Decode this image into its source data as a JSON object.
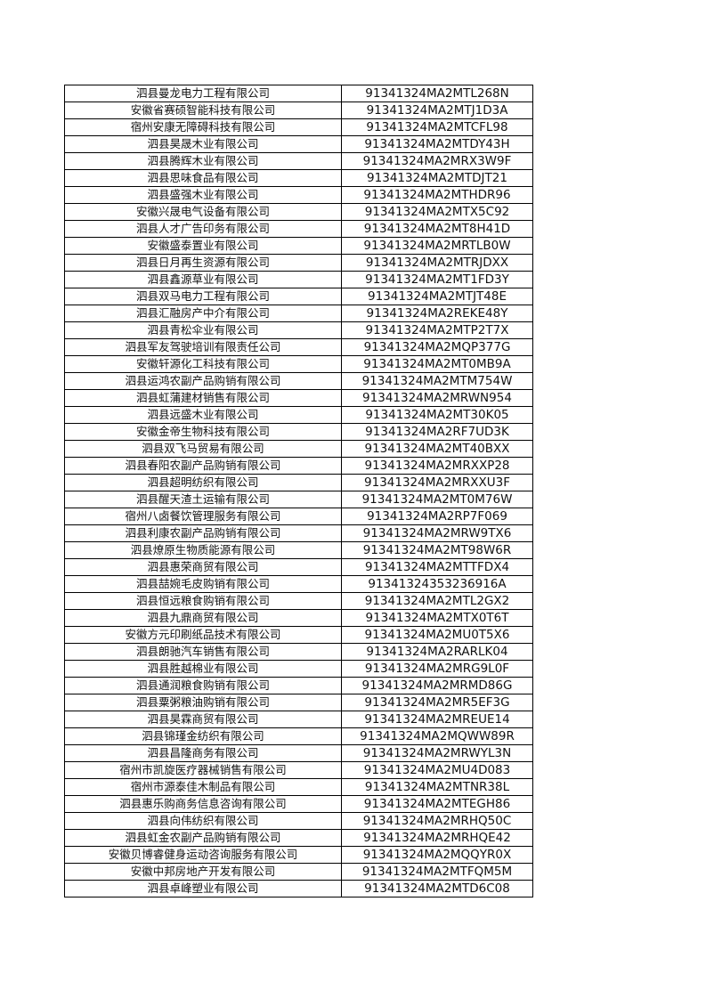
{
  "rows": [
    {
      "name": "泗县曼龙电力工程有限公司",
      "code": "91341324MA2MTL268N"
    },
    {
      "name": "安徽省赛硕智能科技有限公司",
      "code": "91341324MA2MTJ1D3A"
    },
    {
      "name": "宿州安康无障碍科技有限公司",
      "code": "91341324MA2MTCFL98"
    },
    {
      "name": "泗县昊晟木业有限公司",
      "code": "91341324MA2MTDY43H"
    },
    {
      "name": "泗县腾辉木业有限公司",
      "code": "91341324MA2MRX3W9F"
    },
    {
      "name": "泗县思味食品有限公司",
      "code": "91341324MA2MTDJT21"
    },
    {
      "name": "泗县盛强木业有限公司",
      "code": "91341324MA2MTHDR96"
    },
    {
      "name": "安徽兴晟电气设备有限公司",
      "code": "91341324MA2MTX5C92"
    },
    {
      "name": "泗县人才广告印务有限公司",
      "code": "91341324MA2MT8H41D"
    },
    {
      "name": "安徽盛泰置业有限公司",
      "code": "91341324MA2MRTLB0W"
    },
    {
      "name": "泗县日月再生资源有限公司",
      "code": "91341324MA2MTRJDXX"
    },
    {
      "name": "泗县鑫源草业有限公司",
      "code": "91341324MA2MT1FD3Y"
    },
    {
      "name": "泗县双马电力工程有限公司",
      "code": "91341324MA2MTJT48E"
    },
    {
      "name": "泗县汇融房产中介有限公司",
      "code": "91341324MA2REKE48Y"
    },
    {
      "name": "泗县青松伞业有限公司",
      "code": "91341324MA2MTP2T7X"
    },
    {
      "name": "泗县军友驾驶培训有限责任公司",
      "code": "91341324MA2MQP377G"
    },
    {
      "name": "安徽轩源化工科技有限公司",
      "code": "91341324MA2MT0MB9A"
    },
    {
      "name": "泗县运鸿农副产品购销有限公司",
      "code": "91341324MA2MTM754W"
    },
    {
      "name": "泗县虹蒲建材销售有限公司",
      "code": "91341324MA2MRWN954"
    },
    {
      "name": "泗县远盛木业有限公司",
      "code": "91341324MA2MT30K05"
    },
    {
      "name": "安徽金帝生物科技有限公司",
      "code": "91341324MA2RF7UD3K"
    },
    {
      "name": "泗县双飞马贸易有限公司",
      "code": "91341324MA2MT40BXX"
    },
    {
      "name": "泗县春阳农副产品购销有限公司",
      "code": "91341324MA2MRXXP28"
    },
    {
      "name": "泗县超明纺织有限公司",
      "code": "91341324MA2MRXXU3F"
    },
    {
      "name": "泗县醒天渣土运输有限公司",
      "code": "91341324MA2MT0M76W"
    },
    {
      "name": "宿州八卤餐饮管理服务有限公司",
      "code": "91341324MA2RP7F069"
    },
    {
      "name": "泗县利康农副产品购销有限公司",
      "code": "91341324MA2MRW9TX6"
    },
    {
      "name": "泗县燎原生物质能源有限公司",
      "code": "91341324MA2MT98W6R"
    },
    {
      "name": "泗县惠荣商贸有限公司",
      "code": "91341324MA2MTTFDX4"
    },
    {
      "name": "泗县喆婉毛皮购销有限公司",
      "code": "91341324353236916A"
    },
    {
      "name": "泗县恒远粮食购销有限公司",
      "code": "91341324MA2MTL2GX2"
    },
    {
      "name": "泗县九鼎商贸有限公司",
      "code": "91341324MA2MTX0T6T"
    },
    {
      "name": "安徽方元印刷纸品技术有限公司",
      "code": "91341324MA2MU0T5X6"
    },
    {
      "name": "泗县朗驰汽车销售有限公司",
      "code": "91341324MA2RARLK04"
    },
    {
      "name": "泗县胜越棉业有限公司",
      "code": "91341324MA2MRG9L0F"
    },
    {
      "name": "泗县通润粮食购销有限公司",
      "code": "91341324MA2MRMD86G"
    },
    {
      "name": "泗县粟粥粮油购销有限公司",
      "code": "91341324MA2MR5EF3G"
    },
    {
      "name": "泗县昊霖商贸有限公司",
      "code": "91341324MA2MREUE14"
    },
    {
      "name": "泗县锦瑾金纺织有限公司",
      "code": "91341324MA2MQWW89R"
    },
    {
      "name": "泗县昌隆商务有限公司",
      "code": "91341324MA2MRWYL3N"
    },
    {
      "name": "宿州市凯旋医疗器械销售有限公司",
      "code": "91341324MA2MU4D083"
    },
    {
      "name": "宿州市源泰佳木制品有限公司",
      "code": "91341324MA2MTNR38L"
    },
    {
      "name": "泗县惠乐购商务信息咨询有限公司",
      "code": "91341324MA2MTEGH86"
    },
    {
      "name": "泗县向伟纺织有限公司",
      "code": "91341324MA2MRHQ50C"
    },
    {
      "name": "泗县虹金农副产品购销有限公司",
      "code": "91341324MA2MRHQE42"
    },
    {
      "name": "安徽贝博睿健身运动咨询服务有限公司",
      "code": "91341324MA2MQQYR0X"
    },
    {
      "name": "安徽中邦房地产开发有限公司",
      "code": "91341324MA2MTFQM5M"
    },
    {
      "name": "泗县卓峰塑业有限公司",
      "code": "91341324MA2MTD6C08"
    }
  ]
}
